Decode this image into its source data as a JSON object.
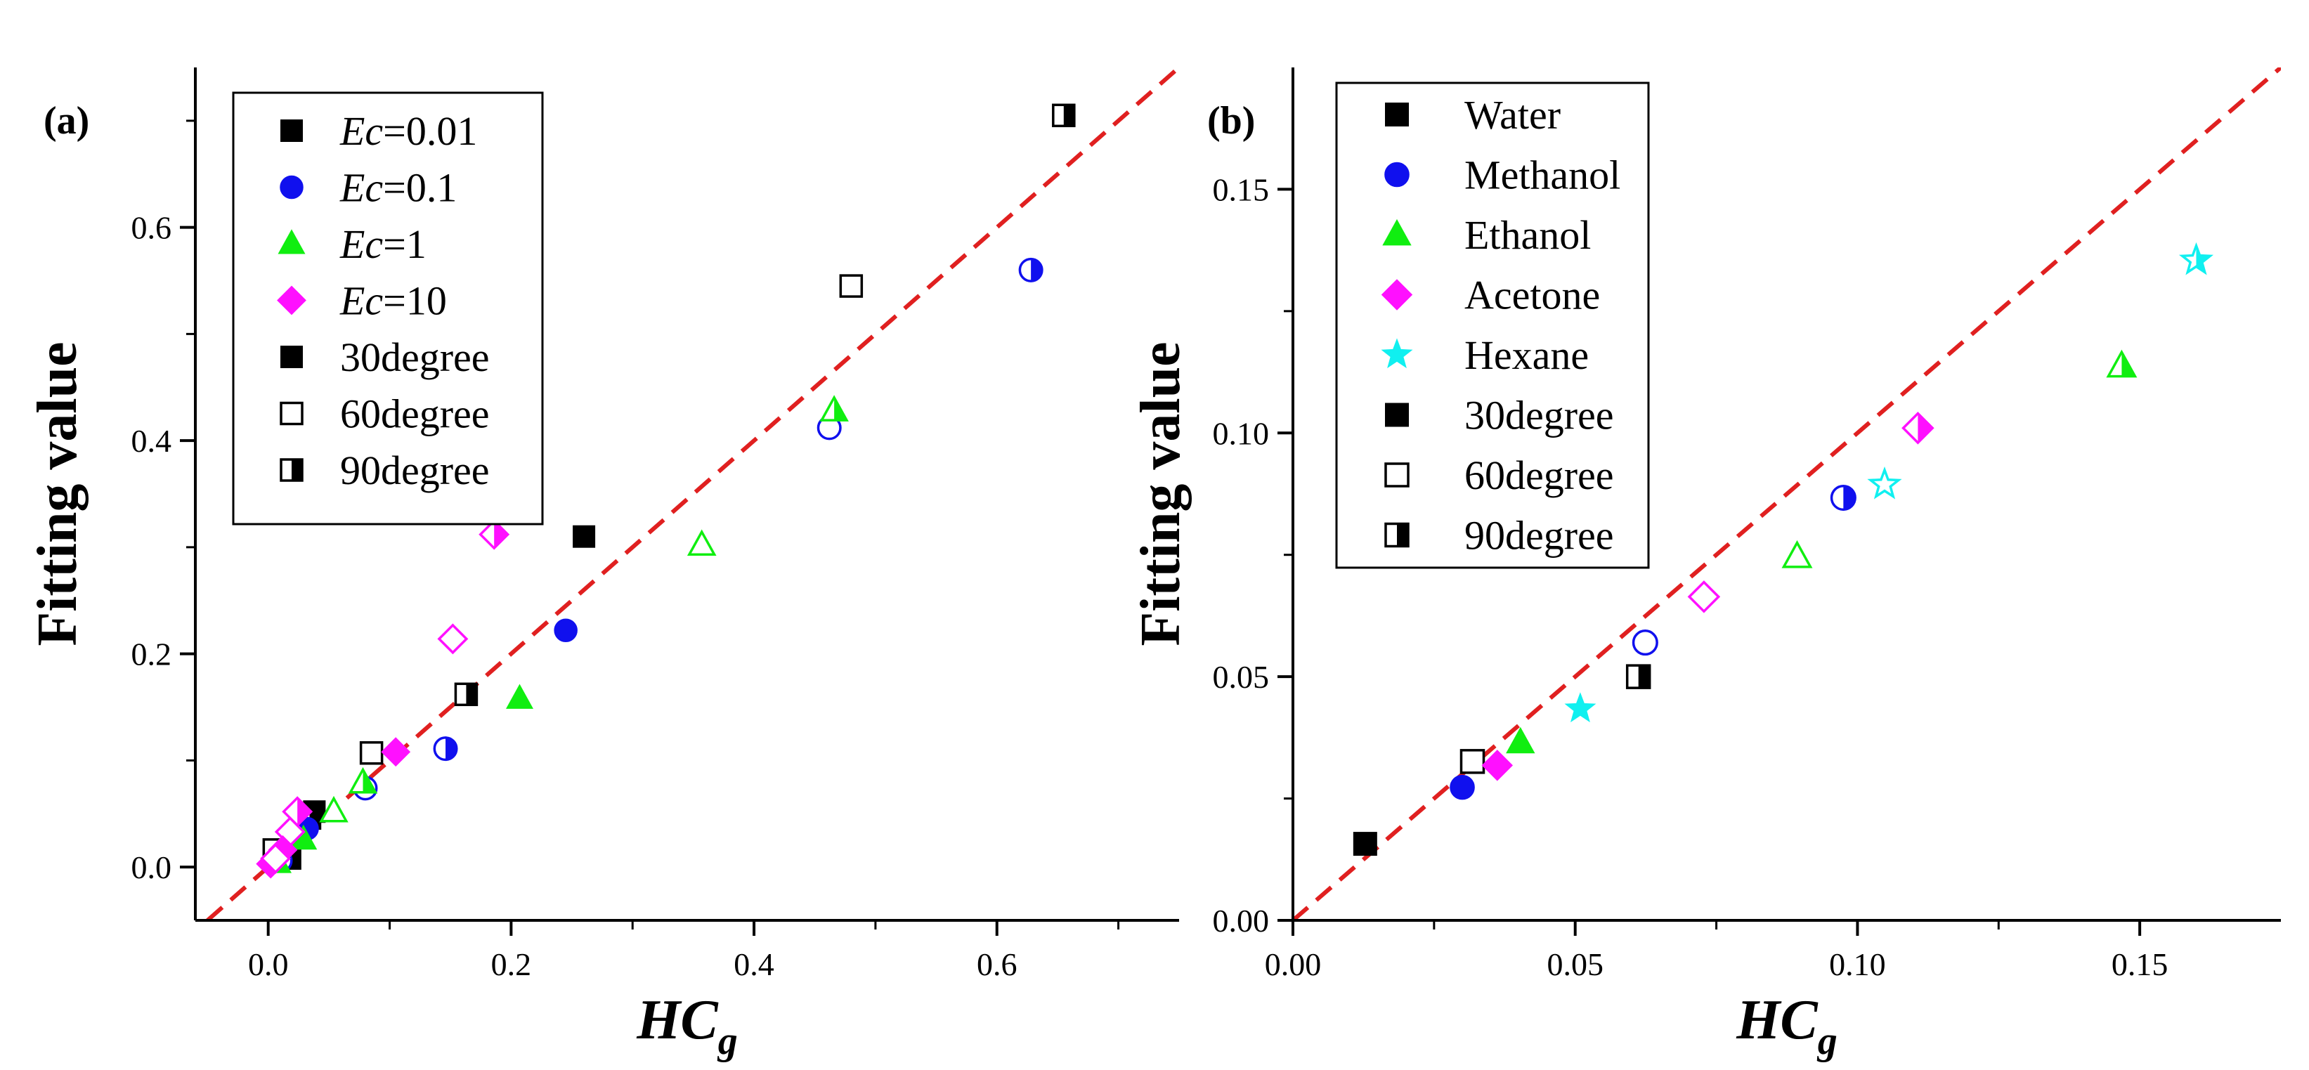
{
  "chart_data": [
    {
      "type": "scatter",
      "panel_label": "(a)",
      "title": "",
      "xlabel_main": "HC",
      "xlabel_sub": "g",
      "ylabel": "Fitting value",
      "xlim": [
        -0.06,
        0.75
      ],
      "ylim": [
        -0.05,
        0.75
      ],
      "xticks": [
        0.0,
        0.2,
        0.4,
        0.6
      ],
      "xtick_labels": [
        "0.0",
        "0.2",
        "0.4",
        "0.6"
      ],
      "yticks": [
        0.0,
        0.2,
        0.4,
        0.6
      ],
      "ytick_labels": [
        "0.0",
        "0.2",
        "0.4",
        "0.6"
      ],
      "reference_line": {
        "style": "dashed",
        "color": "#e02020",
        "slope": 1
      },
      "legend_position": "top-left",
      "legend": [
        {
          "prefix": "Ec",
          "text": "=0.01",
          "marker": "square",
          "fill": "filled",
          "color": "#000000"
        },
        {
          "prefix": "Ec",
          "text": "=0.1",
          "marker": "circle",
          "fill": "filled",
          "color": "#1010ee"
        },
        {
          "prefix": "Ec",
          "text": "=1",
          "marker": "triangle",
          "fill": "filled",
          "color": "#10ee10"
        },
        {
          "prefix": "Ec",
          "text": "=10",
          "marker": "diamond",
          "fill": "filled",
          "color": "#ff10ff"
        },
        {
          "prefix": "",
          "text": "30degree",
          "marker": "square",
          "fill": "filled",
          "color": "#000000"
        },
        {
          "prefix": "",
          "text": "60degree",
          "marker": "square",
          "fill": "open",
          "color": "#000000"
        },
        {
          "prefix": "",
          "text": "90degree",
          "marker": "square",
          "fill": "half",
          "color": "#000000"
        }
      ],
      "series": [
        {
          "marker": "square",
          "color": "#000000",
          "points": [
            {
              "x": 0.26,
              "y": 0.31,
              "fill": "filled"
            },
            {
              "x": 0.48,
              "y": 0.545,
              "fill": "open"
            },
            {
              "x": 0.655,
              "y": 0.705,
              "fill": "half"
            },
            {
              "x": 0.038,
              "y": 0.052,
              "fill": "filled"
            },
            {
              "x": 0.163,
              "y": 0.162,
              "fill": "half"
            },
            {
              "x": 0.085,
              "y": 0.107,
              "fill": "open"
            },
            {
              "x": 0.018,
              "y": 0.008,
              "fill": "filled"
            },
            {
              "x": 0.005,
              "y": 0.016,
              "fill": "open"
            },
            {
              "x": 0.034,
              "y": 0.046,
              "fill": "half"
            }
          ]
        },
        {
          "marker": "circle",
          "color": "#1010ee",
          "points": [
            {
              "x": 0.245,
              "y": 0.222,
              "fill": "filled"
            },
            {
              "x": 0.462,
              "y": 0.412,
              "fill": "open"
            },
            {
              "x": 0.628,
              "y": 0.56,
              "fill": "half"
            },
            {
              "x": 0.146,
              "y": 0.111,
              "fill": "half"
            },
            {
              "x": 0.08,
              "y": 0.074,
              "fill": "open"
            },
            {
              "x": 0.032,
              "y": 0.036,
              "fill": "filled"
            },
            {
              "x": 0.01,
              "y": 0.006,
              "fill": "open"
            }
          ]
        },
        {
          "marker": "triangle",
          "color": "#10ee10",
          "points": [
            {
              "x": 0.207,
              "y": 0.158,
              "fill": "filled"
            },
            {
              "x": 0.357,
              "y": 0.302,
              "fill": "open"
            },
            {
              "x": 0.466,
              "y": 0.428,
              "fill": "half"
            },
            {
              "x": 0.054,
              "y": 0.052,
              "fill": "open"
            },
            {
              "x": 0.078,
              "y": 0.079,
              "fill": "half"
            },
            {
              "x": 0.029,
              "y": 0.026,
              "fill": "filled"
            },
            {
              "x": 0.008,
              "y": 0.004,
              "fill": "filled"
            }
          ]
        },
        {
          "marker": "diamond",
          "color": "#ff10ff",
          "points": [
            {
              "x": 0.186,
              "y": 0.312,
              "fill": "half"
            },
            {
              "x": 0.152,
              "y": 0.214,
              "fill": "open"
            },
            {
              "x": 0.105,
              "y": 0.108,
              "fill": "filled"
            },
            {
              "x": 0.024,
              "y": 0.052,
              "fill": "half"
            },
            {
              "x": 0.018,
              "y": 0.033,
              "fill": "open"
            },
            {
              "x": 0.012,
              "y": 0.016,
              "fill": "filled"
            },
            {
              "x": 0.002,
              "y": 0.003,
              "fill": "filled"
            },
            {
              "x": 0.006,
              "y": 0.008,
              "fill": "open"
            }
          ]
        }
      ]
    },
    {
      "type": "scatter",
      "panel_label": "(b)",
      "title": "",
      "xlabel_main": "HC",
      "xlabel_sub": "g",
      "ylabel": "Fitting value",
      "xlim": [
        0.0,
        0.175
      ],
      "ylim": [
        0.0,
        0.175
      ],
      "xticks": [
        0.0,
        0.05,
        0.1,
        0.15
      ],
      "xtick_labels": [
        "0.00",
        "0.05",
        "0.10",
        "0.15"
      ],
      "yticks": [
        0.0,
        0.05,
        0.1,
        0.15
      ],
      "ytick_labels": [
        "0.00",
        "0.05",
        "0.10",
        "0.15"
      ],
      "reference_line": {
        "style": "dashed",
        "color": "#e02020",
        "slope": 1
      },
      "legend_position": "top-left",
      "legend": [
        {
          "prefix": "",
          "text": "Water",
          "marker": "square",
          "fill": "filled",
          "color": "#000000"
        },
        {
          "prefix": "",
          "text": "Methanol",
          "marker": "circle",
          "fill": "filled",
          "color": "#1010ee"
        },
        {
          "prefix": "",
          "text": "Ethanol",
          "marker": "triangle",
          "fill": "filled",
          "color": "#10ee10"
        },
        {
          "prefix": "",
          "text": "Acetone",
          "marker": "diamond",
          "fill": "filled",
          "color": "#ff10ff"
        },
        {
          "prefix": "",
          "text": "Hexane",
          "marker": "star",
          "fill": "filled",
          "color": "#10f0f0"
        },
        {
          "prefix": "",
          "text": "30degree",
          "marker": "square",
          "fill": "filled",
          "color": "#000000"
        },
        {
          "prefix": "",
          "text": "60degree",
          "marker": "square",
          "fill": "open",
          "color": "#000000"
        },
        {
          "prefix": "",
          "text": "90degree",
          "marker": "square",
          "fill": "half",
          "color": "#000000"
        }
      ],
      "series": [
        {
          "marker": "square",
          "color": "#000000",
          "points": [
            {
              "x": 0.0128,
              "y": 0.0157,
              "fill": "filled"
            },
            {
              "x": 0.0318,
              "y": 0.0326,
              "fill": "open"
            },
            {
              "x": 0.0612,
              "y": 0.05,
              "fill": "half"
            }
          ]
        },
        {
          "marker": "circle",
          "color": "#1010ee",
          "points": [
            {
              "x": 0.03,
              "y": 0.0273,
              "fill": "filled"
            },
            {
              "x": 0.0624,
              "y": 0.057,
              "fill": "open"
            },
            {
              "x": 0.0975,
              "y": 0.0867,
              "fill": "half"
            }
          ]
        },
        {
          "marker": "triangle",
          "color": "#10ee10",
          "points": [
            {
              "x": 0.0403,
              "y": 0.0365,
              "fill": "filled"
            },
            {
              "x": 0.0893,
              "y": 0.0746,
              "fill": "open"
            },
            {
              "x": 0.1468,
              "y": 0.1137,
              "fill": "half"
            }
          ]
        },
        {
          "marker": "diamond",
          "color": "#ff10ff",
          "points": [
            {
              "x": 0.0362,
              "y": 0.0318,
              "fill": "filled"
            },
            {
              "x": 0.0728,
              "y": 0.0664,
              "fill": "open"
            },
            {
              "x": 0.1107,
              "y": 0.101,
              "fill": "half"
            }
          ]
        },
        {
          "marker": "star",
          "color": "#10f0f0",
          "points": [
            {
              "x": 0.0509,
              "y": 0.0434,
              "fill": "filled"
            },
            {
              "x": 0.1048,
              "y": 0.0894,
              "fill": "open"
            },
            {
              "x": 0.16,
              "y": 0.1354,
              "fill": "half"
            }
          ]
        }
      ]
    }
  ]
}
